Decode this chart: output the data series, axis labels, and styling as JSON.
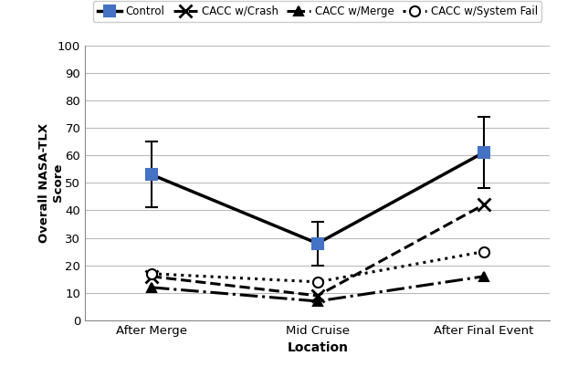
{
  "x_labels": [
    "After Merge",
    "Mid Cruise",
    "After Final Event"
  ],
  "x_positions": [
    0,
    1,
    2
  ],
  "series": [
    {
      "label": "Control",
      "values": [
        53,
        28,
        61
      ],
      "yerr": [
        12,
        8,
        13
      ],
      "line_color": "#000000",
      "marker_color": "#4472C4",
      "linestyle": "-",
      "linewidth": 2.5,
      "marker": "s",
      "markersize": 8,
      "show_errorbars": true,
      "zorder": 5
    },
    {
      "label": "CACC w/Crash",
      "values": [
        16,
        9,
        42
      ],
      "line_color": "#000000",
      "marker_color": "#000000",
      "linestyle": "--",
      "linewidth": 2.2,
      "marker": "x",
      "markersize": 10,
      "markeredgewidth": 2.0,
      "show_errorbars": false,
      "zorder": 4
    },
    {
      "label": "CACC w/Merge",
      "values": [
        12,
        7,
        16
      ],
      "line_color": "#000000",
      "marker_color": "#000000",
      "linestyle": "-.",
      "linewidth": 2.2,
      "marker": "^",
      "markersize": 7,
      "show_errorbars": false,
      "zorder": 4
    },
    {
      "label": "CACC w/System Fail",
      "values": [
        17,
        14,
        25
      ],
      "line_color": "#000000",
      "marker_color": "#000000",
      "linestyle": ":",
      "linewidth": 2.2,
      "marker": "o",
      "markersize": 8,
      "show_errorbars": false,
      "zorder": 4
    }
  ],
  "xlabel": "Location",
  "ylabel": "Overall NASA-TLX\nScore",
  "ylim": [
    0,
    100
  ],
  "yticks": [
    0,
    10,
    20,
    30,
    40,
    50,
    60,
    70,
    80,
    90,
    100
  ],
  "background_color": "#ffffff",
  "grid_color": "#bbbbbb",
  "legend_fontsize": 8.5,
  "axis_fontsize": 9.5,
  "xlabel_fontsize": 10,
  "ylabel_fontsize": 9.5
}
